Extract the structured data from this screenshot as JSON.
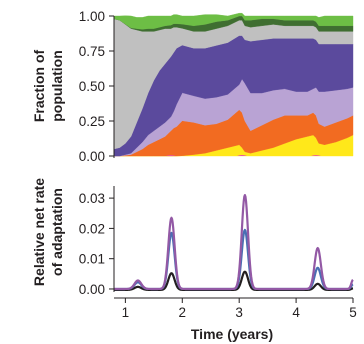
{
  "chart_data": [
    {
      "type": "area",
      "stacked": true,
      "ylabel_line1": "Fraction of",
      "ylabel_line2": "population",
      "ylim": [
        0,
        1
      ],
      "yticks": [
        "0.00",
        "0.25",
        "0.50",
        "0.75",
        "1.00"
      ],
      "yticks_values": [
        0,
        0.25,
        0.5,
        0.75,
        1.0
      ],
      "xlim": [
        0.8,
        5.0
      ],
      "x": [
        0.8,
        0.9,
        1.0,
        1.1,
        1.2,
        1.3,
        1.4,
        1.5,
        1.6,
        1.7,
        1.8,
        1.85,
        1.9,
        2.0,
        2.2,
        2.4,
        2.6,
        2.8,
        3.0,
        3.05,
        3.1,
        3.2,
        3.4,
        3.6,
        3.8,
        4.0,
        4.2,
        4.3,
        4.35,
        4.4,
        4.5,
        4.7,
        4.9,
        5.0
      ],
      "series": [
        {
          "color": "#ffe81a",
          "values": [
            0,
            0,
            0,
            0,
            0,
            0,
            0,
            0,
            0,
            0,
            0,
            0,
            0,
            0.002,
            0.01,
            0.02,
            0.04,
            0.06,
            0.08,
            0.06,
            0.03,
            0.02,
            0.04,
            0.06,
            0.09,
            0.12,
            0.14,
            0.15,
            0.13,
            0.09,
            0.08,
            0.1,
            0.13,
            0.15
          ]
        },
        {
          "color": "#f26b21",
          "values": [
            0,
            0,
            0.005,
            0.01,
            0.03,
            0.05,
            0.08,
            0.1,
            0.12,
            0.14,
            0.18,
            0.2,
            0.21,
            0.25,
            0.23,
            0.2,
            0.19,
            0.2,
            0.25,
            0.25,
            0.22,
            0.16,
            0.18,
            0.2,
            0.2,
            0.17,
            0.15,
            0.16,
            0.16,
            0.14,
            0.13,
            0.14,
            0.14,
            0.14
          ]
        },
        {
          "color": "#b9a3d4",
          "values": [
            0,
            0,
            0.005,
            0.01,
            0.03,
            0.05,
            0.07,
            0.08,
            0.09,
            0.1,
            0.1,
            0.12,
            0.16,
            0.2,
            0.19,
            0.19,
            0.19,
            0.18,
            0.18,
            0.24,
            0.27,
            0.27,
            0.23,
            0.21,
            0.19,
            0.17,
            0.17,
            0.17,
            0.2,
            0.23,
            0.25,
            0.23,
            0.21,
            0.2
          ]
        },
        {
          "color": "#5b4a9d",
          "values": [
            0.05,
            0.06,
            0.08,
            0.12,
            0.18,
            0.24,
            0.3,
            0.36,
            0.4,
            0.42,
            0.43,
            0.42,
            0.4,
            0.34,
            0.34,
            0.36,
            0.37,
            0.37,
            0.35,
            0.31,
            0.31,
            0.37,
            0.38,
            0.37,
            0.36,
            0.38,
            0.38,
            0.36,
            0.34,
            0.34,
            0.34,
            0.33,
            0.32,
            0.31
          ]
        },
        {
          "color": "#c0c0c0",
          "values": [
            0.93,
            0.91,
            0.85,
            0.77,
            0.66,
            0.55,
            0.44,
            0.35,
            0.29,
            0.25,
            0.2,
            0.18,
            0.15,
            0.12,
            0.12,
            0.12,
            0.12,
            0.12,
            0.11,
            0.11,
            0.1,
            0.1,
            0.1,
            0.1,
            0.09,
            0.09,
            0.09,
            0.09,
            0.09,
            0.09,
            0.09,
            0.09,
            0.09,
            0.09
          ]
        },
        {
          "color": "#3f6e31",
          "values": [
            0,
            0,
            0.002,
            0.005,
            0.01,
            0.015,
            0.02,
            0.02,
            0.02,
            0.02,
            0.025,
            0.025,
            0.025,
            0.03,
            0.04,
            0.05,
            0.05,
            0.04,
            0.03,
            0.03,
            0.04,
            0.05,
            0.05,
            0.04,
            0.04,
            0.04,
            0.04,
            0.04,
            0.04,
            0.04,
            0.04,
            0.04,
            0.04,
            0.04
          ]
        },
        {
          "color": "#6dbe45",
          "values": [
            0.02,
            0.03,
            0.06,
            0.085,
            0.08,
            0.085,
            0.09,
            0.09,
            0.08,
            0.07,
            0.065,
            0.065,
            0.065,
            0.058,
            0.07,
            0.07,
            0.05,
            0.03,
            0.02,
            0.02,
            0.03,
            0.03,
            0.02,
            0.02,
            0.03,
            0.03,
            0.03,
            0.03,
            0.04,
            0.06,
            0.07,
            0.07,
            0.07,
            0.07
          ]
        }
      ],
      "spikes": [
        {
          "color": "#ec4fa8",
          "x": 1.8,
          "value": 0.012
        },
        {
          "color": "#ec4fa8",
          "x": 3.05,
          "value": 0.015
        },
        {
          "color": "#ec4fa8",
          "x": 4.35,
          "value": 0.012
        }
      ]
    },
    {
      "type": "line",
      "ylabel_line1": "Relative net rate",
      "ylabel_line2": "of adaptation",
      "ylim": [
        -0.001,
        0.034
      ],
      "yticks": [
        "0.00",
        "0.01",
        "0.02",
        "0.03"
      ],
      "yticks_values": [
        0,
        0.01,
        0.02,
        0.03
      ],
      "xlim": [
        0.8,
        5.0
      ],
      "xticks": [
        "1",
        "2",
        "3",
        "4",
        "5"
      ],
      "xticks_values": [
        1,
        2,
        3,
        4,
        5
      ],
      "xlabel": "Time (years)",
      "peaks": [
        {
          "x": 1.22,
          "width": 0.06
        },
        {
          "x": 1.81,
          "width": 0.055
        },
        {
          "x": 3.1,
          "width": 0.055
        },
        {
          "x": 4.38,
          "width": 0.055
        },
        {
          "x": 5.0,
          "width": 0.03
        }
      ],
      "series": [
        {
          "color": "#231f20",
          "baseline": -0.0003,
          "peak_values": [
            0.001,
            0.0055,
            0.006,
            0.002,
            0.0005
          ]
        },
        {
          "color": "#4a6fb3",
          "baseline": 0,
          "peak_values": [
            0.0022,
            0.0185,
            0.0195,
            0.007,
            0.0015
          ]
        },
        {
          "color": "#9359a5",
          "baseline": 0,
          "peak_values": [
            0.0028,
            0.0235,
            0.031,
            0.0135,
            0.003
          ]
        }
      ]
    }
  ]
}
